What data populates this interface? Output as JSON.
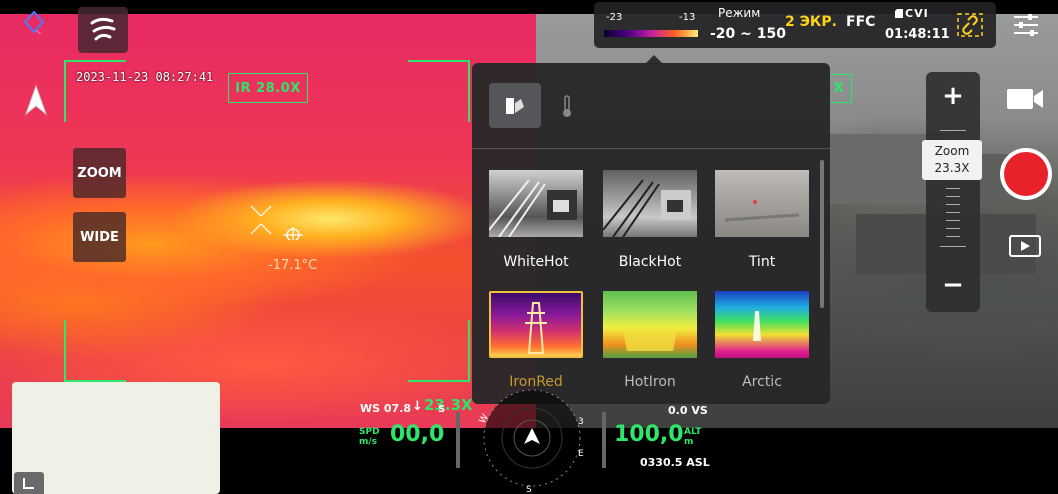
{
  "camera": {
    "timestamp": "2023-11-23 08:27:41",
    "ir_zoom": "IR 28.0X",
    "spot_temp": "-17.1°C",
    "zoom_button": "ZOOM",
    "wide_button": "WIDE"
  },
  "status": {
    "scale_min": "-23",
    "scale_max": "-13",
    "mode_label": "Режим",
    "mode_value": "-20 ~ 150",
    "screen_mode": "2 ЭКР.",
    "ffc": "FFC",
    "recorder": "CVI",
    "flight_time": "01:48:11"
  },
  "palette_popup": {
    "items": [
      {
        "label": "WhiteHot",
        "selected": false
      },
      {
        "label": "BlackHot",
        "selected": false
      },
      {
        "label": "Tint",
        "selected": false
      },
      {
        "label": "IronRed",
        "selected": true
      },
      {
        "label": "HotIron",
        "selected": false
      },
      {
        "label": "Arctic",
        "selected": false
      }
    ],
    "selected_color": "#f0c040"
  },
  "visual_overlay": {
    "partial_label": "X"
  },
  "zoom_control": {
    "plus": "+",
    "minus": "−",
    "label": "Zoom",
    "value": "23.3X"
  },
  "telemetry": {
    "wind": "WS 07.8",
    "wind_dir": "↓",
    "zoom_overlay": "23.3X",
    "compass_s": "S",
    "spd_label_top": "SPD",
    "spd_label_bottom": "m/s",
    "speed": "00,0",
    "vs": "0.0 VS",
    "alt": "100,0",
    "alt_label_top": "ALT",
    "alt_label_bottom": "m",
    "asl": "0330.5 ASL"
  },
  "colors": {
    "accent_green": "#2ee66a",
    "accent_yellow": "#ffd21a",
    "record_red": "#e8222a"
  }
}
